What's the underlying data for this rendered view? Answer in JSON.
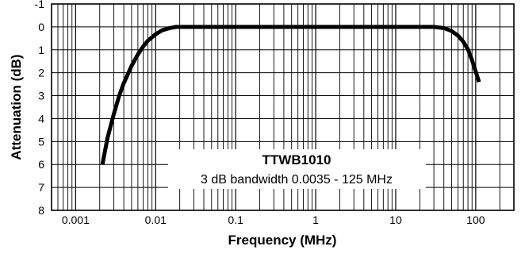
{
  "chart_data": {
    "type": "line",
    "xscale": "log",
    "xlim": [
      0.0005,
      300
    ],
    "ylim": [
      8,
      -1
    ],
    "y_inverted": true,
    "grid": true,
    "xlabel": "Frequency (MHz)",
    "ylabel": "Attenuation (dB)",
    "xticks": [
      {
        "value": 0.001,
        "label": "0.001"
      },
      {
        "value": 0.01,
        "label": "0.01"
      },
      {
        "value": 0.1,
        "label": "0.1"
      },
      {
        "value": 1,
        "label": "1"
      },
      {
        "value": 10,
        "label": "10"
      },
      {
        "value": 100,
        "label": "100"
      }
    ],
    "yticks": [
      {
        "value": -1,
        "label": "-1"
      },
      {
        "value": 0,
        "label": "0"
      },
      {
        "value": 1,
        "label": "1"
      },
      {
        "value": 2,
        "label": "2"
      },
      {
        "value": 3,
        "label": "3"
      },
      {
        "value": 4,
        "label": "4"
      },
      {
        "value": 5,
        "label": "5"
      },
      {
        "value": 6,
        "label": "6"
      },
      {
        "value": 7,
        "label": "7"
      },
      {
        "value": 8,
        "label": "8"
      }
    ],
    "series": [
      {
        "color": "#000000",
        "x": [
          0.00216,
          0.0025,
          0.003,
          0.0035,
          0.004,
          0.005,
          0.006,
          0.007,
          0.008,
          0.01,
          0.012,
          0.015,
          0.018,
          0.02,
          0.1,
          1,
          10,
          30,
          40,
          50,
          60,
          70,
          80,
          90,
          100,
          110
        ],
        "y": [
          6.0,
          4.85,
          3.8,
          3.0,
          2.45,
          1.7,
          1.2,
          0.85,
          0.6,
          0.32,
          0.15,
          0.05,
          0.0,
          0.0,
          0.0,
          0.0,
          0.0,
          0.0,
          0.05,
          0.18,
          0.38,
          0.65,
          0.98,
          1.45,
          1.95,
          2.4
        ]
      }
    ],
    "annotation": {
      "title": "TTWB1010",
      "subtitle": "3 dB bandwidth 0.0035 - 125 MHz"
    }
  }
}
